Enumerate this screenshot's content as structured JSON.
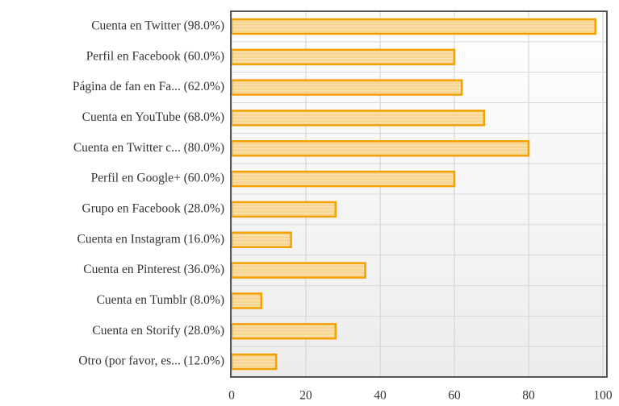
{
  "chart_data": {
    "type": "bar",
    "orientation": "horizontal",
    "categories": [
      "Cuenta en Twitter (98.0%)",
      "Perfil en Facebook (60.0%)",
      "Página de fan en Fa... (62.0%)",
      "Cuenta en YouTube (68.0%)",
      "Cuenta en Twitter c... (80.0%)",
      "Perfil en Google+ (60.0%)",
      "Grupo en Facebook (28.0%)",
      "Cuenta en Instagram (16.0%)",
      "Cuenta en Pinterest (36.0%)",
      "Cuenta en Tumblr (8.0%)",
      "Cuenta en Storify (28.0%)",
      "Otro (por favor, es... (12.0%)"
    ],
    "values": [
      98,
      60,
      62,
      68,
      80,
      60,
      28,
      16,
      36,
      8,
      28,
      12
    ],
    "color": "#f8d592",
    "edge_color": "#f2a100",
    "xlim": [
      0,
      100
    ],
    "xticks": [
      0,
      20,
      40,
      60,
      80,
      100
    ],
    "grid": true
  }
}
